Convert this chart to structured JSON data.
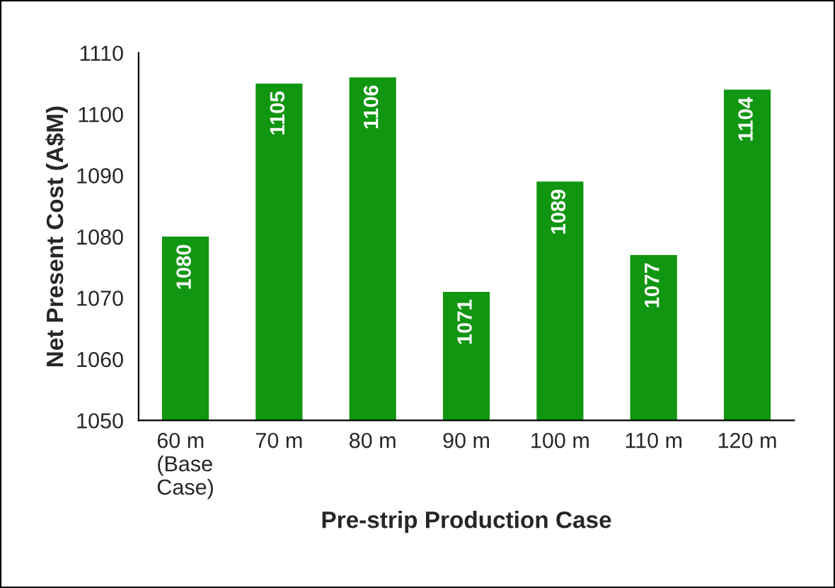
{
  "chart_data": {
    "type": "bar",
    "xlabel": "Pre-strip Production Case",
    "ylabel": "Net Present Cost (A$M)",
    "categories": [
      "60 m\n(Base\nCase)",
      "70 m",
      "80 m",
      "90 m",
      "100 m",
      "110 m",
      "120 m"
    ],
    "values": [
      1080,
      1105,
      1106,
      1071,
      1089,
      1077,
      1104
    ],
    "color": "#119611",
    "ylim": [
      1050,
      1110
    ],
    "yticks": [
      1050,
      1060,
      1070,
      1080,
      1090,
      1100,
      1110
    ],
    "data_labels": true,
    "grid": false,
    "legend": false
  }
}
